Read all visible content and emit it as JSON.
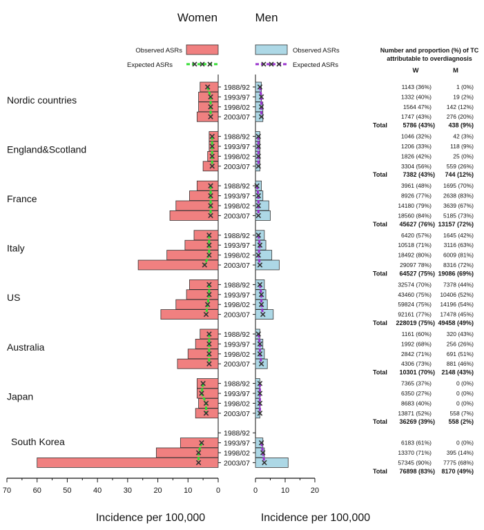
{
  "chart_data": {
    "type": "bar",
    "title_women": "Women",
    "title_men": "Men",
    "xlabel_women": "Incidence per 100,000",
    "xlabel_men": "Incidence per 100,000",
    "women_xlim": [
      0,
      70
    ],
    "men_xlim": [
      0,
      20
    ],
    "women_ticks": [
      "70",
      "60",
      "50",
      "40",
      "30",
      "20",
      "10",
      "0"
    ],
    "men_ticks": [
      "0",
      "10",
      "20"
    ],
    "legend": {
      "observed": "Observed ASRs",
      "expected": "Expected ASRs"
    },
    "colors": {
      "women_fill": "#f08080",
      "men_fill": "#add8e6",
      "women_expected": "#33dd33",
      "men_expected": "#9933cc",
      "marker": "#333333"
    },
    "table_title_line1": "Number and proportion (%) of TC",
    "table_title_line2": "attributable to overdiagnosis",
    "col_w": "W",
    "col_m": "M",
    "total_label": "Total",
    "countries": [
      {
        "name": "Nordic countries",
        "periods": [
          "1988/92",
          "1993/97",
          "1998/02",
          "2003/07"
        ],
        "women_observed": [
          6,
          6.5,
          6.5,
          7
        ],
        "women_expected": [
          3.5,
          2.5,
          2.5,
          2.5
        ],
        "men_observed": [
          2,
          2,
          2.5,
          2.5
        ],
        "men_expected": [
          1.5,
          2,
          2,
          2
        ],
        "rows_w": [
          "1143 (36%)",
          "1332 (40%)",
          "1564 47%)",
          "1747 (43%)"
        ],
        "rows_m": [
          "1 (0%)",
          "19 (2%)",
          "142 (12%)",
          "276 (20%)"
        ],
        "total_w": "5786 (43%)",
        "total_m": "438 (9%)"
      },
      {
        "name": "England&Scotland",
        "periods": [
          "1988/92",
          "1993/97",
          "1998/02",
          "2003/07"
        ],
        "women_observed": [
          3,
          3,
          3.5,
          5
        ],
        "women_expected": [
          2,
          2,
          2,
          2
        ],
        "men_observed": [
          1.5,
          1.5,
          1.5,
          1.5
        ],
        "men_expected": [
          1,
          1,
          1,
          1
        ],
        "rows_w": [
          "1046 (32%)",
          "1206 (33%)",
          "1826 (42%)",
          "3304 (56%)"
        ],
        "rows_m": [
          "42 (3%)",
          "118 (9%)",
          "25 (0%)",
          "559 (26%)"
        ],
        "total_w": "7382 (43%)",
        "total_m": "744 (12%)"
      },
      {
        "name": "France",
        "periods": [
          "1988/92",
          "1993/97",
          "1998/02",
          "2003/07"
        ],
        "women_observed": [
          7,
          9.5,
          14,
          16
        ],
        "women_expected": [
          2.5,
          2.5,
          2.5,
          2.5
        ],
        "men_observed": [
          2,
          2.5,
          4.5,
          5
        ],
        "men_expected": [
          0.5,
          1,
          1,
          1
        ],
        "rows_w": [
          "3961 (48%)",
          "8926 (77%)",
          "14180 (79%)",
          "18560 (84%)"
        ],
        "rows_m": [
          "1695 (70%)",
          "2638 (83%)",
          "3639 (67%)",
          "5185 (73%)"
        ],
        "total_w": "45627 (76%)",
        "total_m": "13157 (72%)"
      },
      {
        "name": "Italy",
        "periods": [
          "1988/92",
          "1993/97",
          "1998/02",
          "2003/07"
        ],
        "women_observed": [
          8,
          11,
          17,
          26.5
        ],
        "women_expected": [
          3,
          3,
          3,
          4.5
        ],
        "men_observed": [
          3,
          3.5,
          5.5,
          8
        ],
        "men_expected": [
          1,
          1.5,
          1,
          1.5
        ],
        "rows_w": [
          "6420 (57%)",
          "10518 (71%)",
          "18492 (80%)",
          "29097 78%)"
        ],
        "rows_m": [
          "1645 (42%)",
          "3116 (63%)",
          "6009 (81%)",
          "8316 (72%)"
        ],
        "total_w": "64527 (75%)",
        "total_m": "19086 (69%)"
      },
      {
        "name": "US",
        "periods": [
          "1988/92",
          "1993/97",
          "1998/02",
          "2003/07"
        ],
        "women_observed": [
          9.5,
          10.5,
          14,
          19
        ],
        "women_expected": [
          3,
          3,
          3.5,
          4
        ],
        "men_observed": [
          3,
          3.5,
          4,
          6
        ],
        "men_expected": [
          1.5,
          2,
          2,
          2.5
        ],
        "rows_w": [
          "32574 (70%)",
          "43460 (75%)",
          "59824 (75%)",
          "92161 (77%)"
        ],
        "rows_m": [
          "7378 (44%)",
          "10406 (52%)",
          "14196 (54%)",
          "17478 (45%)"
        ],
        "total_w": "228019 (75%)",
        "total_m": "49458 (49%)"
      },
      {
        "name": "Australia",
        "periods": [
          "1988/92",
          "1993/97",
          "1998/02",
          "2003/07"
        ],
        "women_observed": [
          6,
          7.5,
          10,
          13.5
        ],
        "women_expected": [
          3,
          3,
          3,
          3
        ],
        "men_observed": [
          1.5,
          2.5,
          3,
          4
        ],
        "men_expected": [
          1,
          1.5,
          1.5,
          2
        ],
        "rows_w": [
          "1161 (60%)",
          "1992 (68%)",
          "2842 (71%)",
          "4306 (73%)"
        ],
        "rows_m": [
          "320 (43%)",
          "256 (26%)",
          "691 (51%)",
          "881 (46%)"
        ],
        "total_w": "10301 (70%)",
        "total_m": "2148 (43%)"
      },
      {
        "name": "Japan",
        "periods": [
          "1988/92",
          "1993/97",
          "1998/02",
          "2003/07"
        ],
        "women_observed": [
          7,
          7,
          6.5,
          7.5
        ],
        "women_expected": [
          5,
          5.5,
          4,
          4
        ],
        "men_observed": [
          1.5,
          1.5,
          1.5,
          1.5
        ],
        "men_expected": [
          1.5,
          1.5,
          1.5,
          1.5
        ],
        "rows_w": [
          "7365 (37%)",
          "6350 (27%)",
          "8683 (40%)",
          "13871 (52%)"
        ],
        "rows_m": [
          "0 (0%)",
          "0 (0%)",
          "0 (0%)",
          "558 (7%)"
        ],
        "total_w": "36269 (39%)",
        "total_m": "558 (2%)"
      },
      {
        "name": "South Korea",
        "periods": [
          "1988/92",
          "1993/97",
          "1998/02",
          "2003/07"
        ],
        "women_observed": [
          null,
          12.5,
          20.5,
          60
        ],
        "women_expected": [
          null,
          5.5,
          6.5,
          6.5
        ],
        "men_observed": [
          null,
          2.5,
          3,
          11
        ],
        "men_expected": [
          null,
          2,
          2.5,
          3
        ],
        "rows_w": [
          "",
          "6183 (61%)",
          "13370 (71%)",
          "57345 (90%)"
        ],
        "rows_m": [
          "",
          "0  (0%)",
          "395 (14%)",
          "7775 (68%)"
        ],
        "total_w": "76898 (83%)",
        "total_m": "8170 (49%)"
      }
    ]
  }
}
